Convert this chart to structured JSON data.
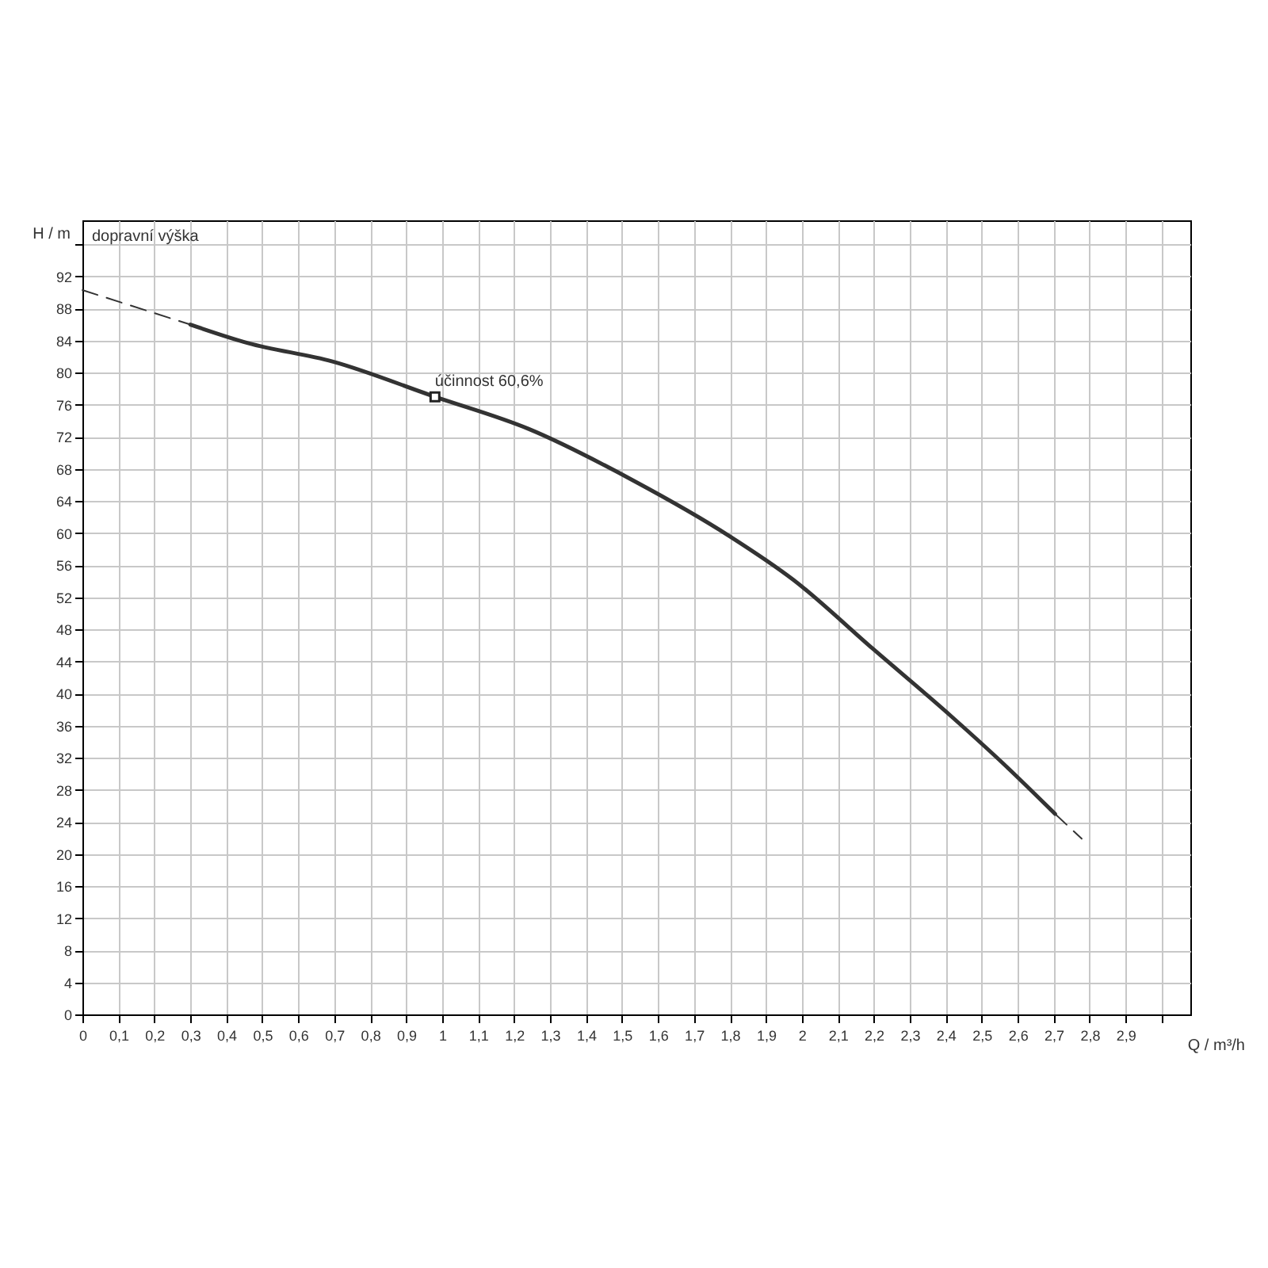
{
  "chart_data": {
    "type": "line",
    "xlabel": "Q / m³/h",
    "ylabel": "H / m",
    "annotations": [
      "dopravní výška",
      {
        "text": "účinnost 60,6%",
        "x": 0.98,
        "y": 77
      }
    ],
    "xlim": [
      0,
      3.08
    ],
    "ylim": [
      0,
      99
    ],
    "xticks": [
      0,
      {
        "value": 0.1,
        "label": "0,1"
      },
      {
        "value": 0.2,
        "label": "0,2"
      },
      {
        "value": 0.3,
        "label": "0,3"
      },
      {
        "value": 0.4,
        "label": "0,4"
      },
      {
        "value": 0.5,
        "label": "0,5"
      },
      {
        "value": 0.6,
        "label": "0,6"
      },
      {
        "value": 0.7,
        "label": "0,7"
      },
      {
        "value": 0.8,
        "label": "0,8"
      },
      {
        "value": 0.9,
        "label": "0,9"
      },
      1,
      {
        "value": 1.1,
        "label": "1,1"
      },
      {
        "value": 1.2,
        "label": "1,2"
      },
      {
        "value": 1.3,
        "label": "1,3"
      },
      {
        "value": 1.4,
        "label": "1,4"
      },
      {
        "value": 1.5,
        "label": "1,5"
      },
      {
        "value": 1.6,
        "label": "1,6"
      },
      {
        "value": 1.7,
        "label": "1,7"
      },
      {
        "value": 1.8,
        "label": "1,8"
      },
      {
        "value": 1.9,
        "label": "1,9"
      },
      2,
      {
        "value": 2.1,
        "label": "2,1"
      },
      {
        "value": 2.2,
        "label": "2,2"
      },
      {
        "value": 2.3,
        "label": "2,3"
      },
      {
        "value": 2.4,
        "label": "2,4"
      },
      {
        "value": 2.5,
        "label": "2,5"
      },
      {
        "value": 2.6,
        "label": "2,6"
      },
      {
        "value": 2.7,
        "label": "2,7"
      },
      {
        "value": 2.8,
        "label": "2,8"
      },
      {
        "value": 2.9,
        "label": "2,9"
      },
      {
        "value": 3,
        "label": null
      }
    ],
    "yticks": [
      0,
      4,
      8,
      12,
      16,
      20,
      24,
      28,
      32,
      36,
      40,
      44,
      48,
      52,
      56,
      60,
      64,
      68,
      72,
      76,
      80,
      84,
      88,
      92,
      {
        "value": 96,
        "label": null
      }
    ],
    "grid": true,
    "series": [
      {
        "color": "#333333",
        "line_style": "dashed",
        "x": [
          0,
          0.3
        ],
        "values": [
          90.3,
          86.0
        ]
      },
      {
        "color": "#333333",
        "line_style": "solid",
        "x": [
          0.3,
          0.46,
          0.695,
          0.98,
          1.24,
          1.534,
          1.8,
          1.976,
          2.197,
          2.417,
          2.564,
          2.704
        ],
        "values": [
          86.0,
          83.7,
          81.4,
          77.0,
          73.0,
          66.5,
          59.6,
          54.2,
          45.6,
          37.1,
          31.1,
          25.0
        ]
      },
      {
        "color": "#333333",
        "line_style": "dashed",
        "x": [
          2.704,
          2.778
        ],
        "values": [
          25.0,
          21.9
        ]
      }
    ]
  }
}
